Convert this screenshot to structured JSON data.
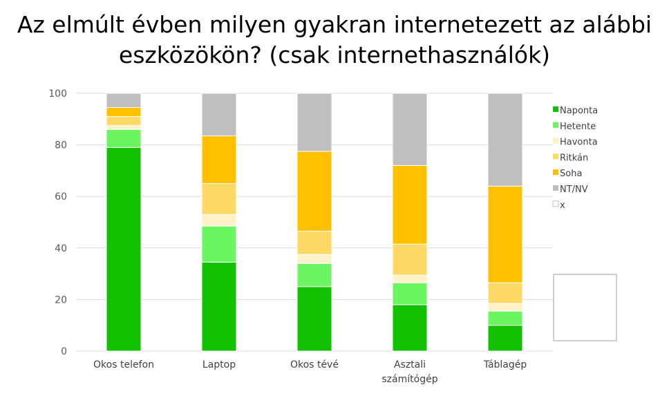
{
  "title_line1": "Az elmúlt évben milyen gyakran internetezett az alábbi",
  "title_line2": "eszközökön? (csak internethasználók)",
  "chart_data": {
    "type": "bar",
    "stacked": true,
    "title": "Az elmúlt évben milyen gyakran internetezett az alábbi eszközökön? (csak internethasználók)",
    "categories": [
      [
        "Okos telefon"
      ],
      [
        "Laptop"
      ],
      [
        "Okos tévé"
      ],
      [
        "Asztali",
        "számítógép"
      ],
      [
        "Táblagép"
      ]
    ],
    "ylim": [
      0,
      100
    ],
    "yticks": [
      0,
      20,
      40,
      60,
      80,
      100
    ],
    "grid": true,
    "legend_position": "right",
    "series": [
      {
        "name": "Naponta",
        "color": "#12C200",
        "values": [
          79,
          34.5,
          25,
          18,
          10
        ]
      },
      {
        "name": "Hetente",
        "color": "#6BF560",
        "values": [
          7,
          14,
          9,
          8.5,
          5.5
        ]
      },
      {
        "name": "Havonta",
        "color": "#FFF2C8",
        "values": [
          1.5,
          4.5,
          3.5,
          3,
          3
        ]
      },
      {
        "name": "Ritkán",
        "color": "#FFD966",
        "values": [
          3.5,
          12,
          9,
          12,
          8
        ]
      },
      {
        "name": "Soha",
        "color": "#FFC000",
        "values": [
          3.5,
          18.5,
          31,
          30.5,
          37.5
        ]
      },
      {
        "name": "NT/NV",
        "color": "#BFBFBF",
        "values": [
          5.5,
          16.5,
          22.5,
          28,
          36
        ]
      },
      {
        "name": "x",
        "color": "#FFFFFF",
        "values": [
          0,
          0,
          0,
          0,
          0
        ]
      }
    ]
  }
}
